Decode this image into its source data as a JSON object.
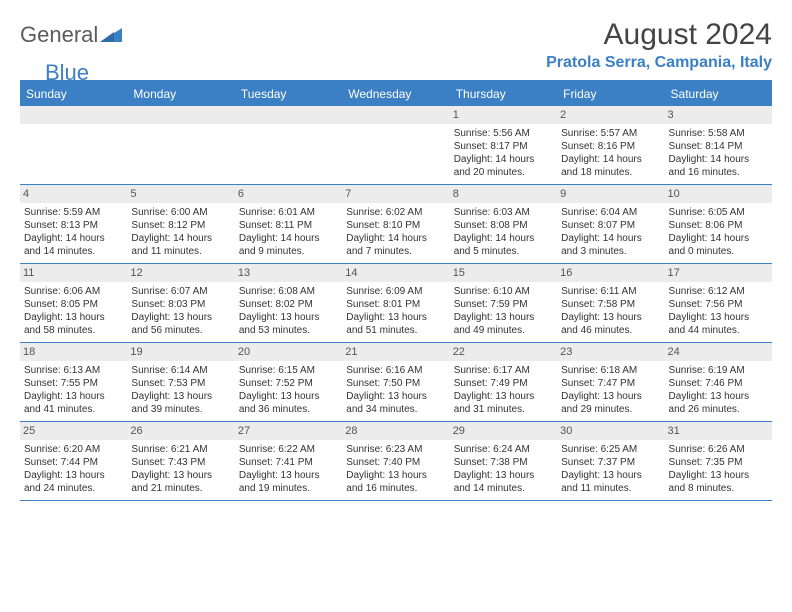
{
  "brand": {
    "text_general": "General",
    "text_blue": "Blue",
    "tri_color": "#3b7fc4"
  },
  "title": "August 2024",
  "location": "Pratola Serra, Campania, Italy",
  "accent_color": "#3b7fc4",
  "daynum_bg": "#ececec",
  "day_headers": [
    "Sunday",
    "Monday",
    "Tuesday",
    "Wednesday",
    "Thursday",
    "Friday",
    "Saturday"
  ],
  "weeks": [
    [
      {
        "n": "",
        "sr": "",
        "ss": "",
        "dl": ""
      },
      {
        "n": "",
        "sr": "",
        "ss": "",
        "dl": ""
      },
      {
        "n": "",
        "sr": "",
        "ss": "",
        "dl": ""
      },
      {
        "n": "",
        "sr": "",
        "ss": "",
        "dl": ""
      },
      {
        "n": "1",
        "sr": "Sunrise: 5:56 AM",
        "ss": "Sunset: 8:17 PM",
        "dl": "Daylight: 14 hours and 20 minutes."
      },
      {
        "n": "2",
        "sr": "Sunrise: 5:57 AM",
        "ss": "Sunset: 8:16 PM",
        "dl": "Daylight: 14 hours and 18 minutes."
      },
      {
        "n": "3",
        "sr": "Sunrise: 5:58 AM",
        "ss": "Sunset: 8:14 PM",
        "dl": "Daylight: 14 hours and 16 minutes."
      }
    ],
    [
      {
        "n": "4",
        "sr": "Sunrise: 5:59 AM",
        "ss": "Sunset: 8:13 PM",
        "dl": "Daylight: 14 hours and 14 minutes."
      },
      {
        "n": "5",
        "sr": "Sunrise: 6:00 AM",
        "ss": "Sunset: 8:12 PM",
        "dl": "Daylight: 14 hours and 11 minutes."
      },
      {
        "n": "6",
        "sr": "Sunrise: 6:01 AM",
        "ss": "Sunset: 8:11 PM",
        "dl": "Daylight: 14 hours and 9 minutes."
      },
      {
        "n": "7",
        "sr": "Sunrise: 6:02 AM",
        "ss": "Sunset: 8:10 PM",
        "dl": "Daylight: 14 hours and 7 minutes."
      },
      {
        "n": "8",
        "sr": "Sunrise: 6:03 AM",
        "ss": "Sunset: 8:08 PM",
        "dl": "Daylight: 14 hours and 5 minutes."
      },
      {
        "n": "9",
        "sr": "Sunrise: 6:04 AM",
        "ss": "Sunset: 8:07 PM",
        "dl": "Daylight: 14 hours and 3 minutes."
      },
      {
        "n": "10",
        "sr": "Sunrise: 6:05 AM",
        "ss": "Sunset: 8:06 PM",
        "dl": "Daylight: 14 hours and 0 minutes."
      }
    ],
    [
      {
        "n": "11",
        "sr": "Sunrise: 6:06 AM",
        "ss": "Sunset: 8:05 PM",
        "dl": "Daylight: 13 hours and 58 minutes."
      },
      {
        "n": "12",
        "sr": "Sunrise: 6:07 AM",
        "ss": "Sunset: 8:03 PM",
        "dl": "Daylight: 13 hours and 56 minutes."
      },
      {
        "n": "13",
        "sr": "Sunrise: 6:08 AM",
        "ss": "Sunset: 8:02 PM",
        "dl": "Daylight: 13 hours and 53 minutes."
      },
      {
        "n": "14",
        "sr": "Sunrise: 6:09 AM",
        "ss": "Sunset: 8:01 PM",
        "dl": "Daylight: 13 hours and 51 minutes."
      },
      {
        "n": "15",
        "sr": "Sunrise: 6:10 AM",
        "ss": "Sunset: 7:59 PM",
        "dl": "Daylight: 13 hours and 49 minutes."
      },
      {
        "n": "16",
        "sr": "Sunrise: 6:11 AM",
        "ss": "Sunset: 7:58 PM",
        "dl": "Daylight: 13 hours and 46 minutes."
      },
      {
        "n": "17",
        "sr": "Sunrise: 6:12 AM",
        "ss": "Sunset: 7:56 PM",
        "dl": "Daylight: 13 hours and 44 minutes."
      }
    ],
    [
      {
        "n": "18",
        "sr": "Sunrise: 6:13 AM",
        "ss": "Sunset: 7:55 PM",
        "dl": "Daylight: 13 hours and 41 minutes."
      },
      {
        "n": "19",
        "sr": "Sunrise: 6:14 AM",
        "ss": "Sunset: 7:53 PM",
        "dl": "Daylight: 13 hours and 39 minutes."
      },
      {
        "n": "20",
        "sr": "Sunrise: 6:15 AM",
        "ss": "Sunset: 7:52 PM",
        "dl": "Daylight: 13 hours and 36 minutes."
      },
      {
        "n": "21",
        "sr": "Sunrise: 6:16 AM",
        "ss": "Sunset: 7:50 PM",
        "dl": "Daylight: 13 hours and 34 minutes."
      },
      {
        "n": "22",
        "sr": "Sunrise: 6:17 AM",
        "ss": "Sunset: 7:49 PM",
        "dl": "Daylight: 13 hours and 31 minutes."
      },
      {
        "n": "23",
        "sr": "Sunrise: 6:18 AM",
        "ss": "Sunset: 7:47 PM",
        "dl": "Daylight: 13 hours and 29 minutes."
      },
      {
        "n": "24",
        "sr": "Sunrise: 6:19 AM",
        "ss": "Sunset: 7:46 PM",
        "dl": "Daylight: 13 hours and 26 minutes."
      }
    ],
    [
      {
        "n": "25",
        "sr": "Sunrise: 6:20 AM",
        "ss": "Sunset: 7:44 PM",
        "dl": "Daylight: 13 hours and 24 minutes."
      },
      {
        "n": "26",
        "sr": "Sunrise: 6:21 AM",
        "ss": "Sunset: 7:43 PM",
        "dl": "Daylight: 13 hours and 21 minutes."
      },
      {
        "n": "27",
        "sr": "Sunrise: 6:22 AM",
        "ss": "Sunset: 7:41 PM",
        "dl": "Daylight: 13 hours and 19 minutes."
      },
      {
        "n": "28",
        "sr": "Sunrise: 6:23 AM",
        "ss": "Sunset: 7:40 PM",
        "dl": "Daylight: 13 hours and 16 minutes."
      },
      {
        "n": "29",
        "sr": "Sunrise: 6:24 AM",
        "ss": "Sunset: 7:38 PM",
        "dl": "Daylight: 13 hours and 14 minutes."
      },
      {
        "n": "30",
        "sr": "Sunrise: 6:25 AM",
        "ss": "Sunset: 7:37 PM",
        "dl": "Daylight: 13 hours and 11 minutes."
      },
      {
        "n": "31",
        "sr": "Sunrise: 6:26 AM",
        "ss": "Sunset: 7:35 PM",
        "dl": "Daylight: 13 hours and 8 minutes."
      }
    ]
  ]
}
